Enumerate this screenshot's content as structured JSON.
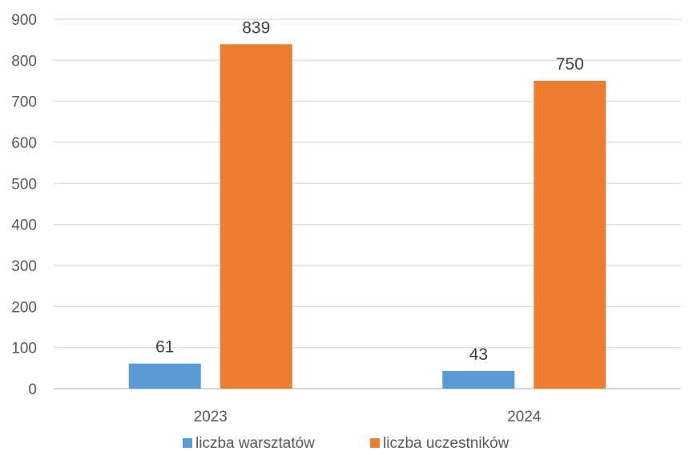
{
  "chart_data": {
    "type": "bar",
    "categories": [
      "2023",
      "2024"
    ],
    "series": [
      {
        "name": "liczba warsztatów",
        "values": [
          61,
          43
        ],
        "color": "#5b9bd5"
      },
      {
        "name": "liczba uczestników",
        "values": [
          839,
          750
        ],
        "color": "#ed7d31"
      }
    ],
    "ylim": [
      0,
      900
    ],
    "yticks": [
      0,
      100,
      200,
      300,
      400,
      500,
      600,
      700,
      800,
      900
    ],
    "grid": true,
    "legend": "bottom",
    "data_labels": true
  }
}
